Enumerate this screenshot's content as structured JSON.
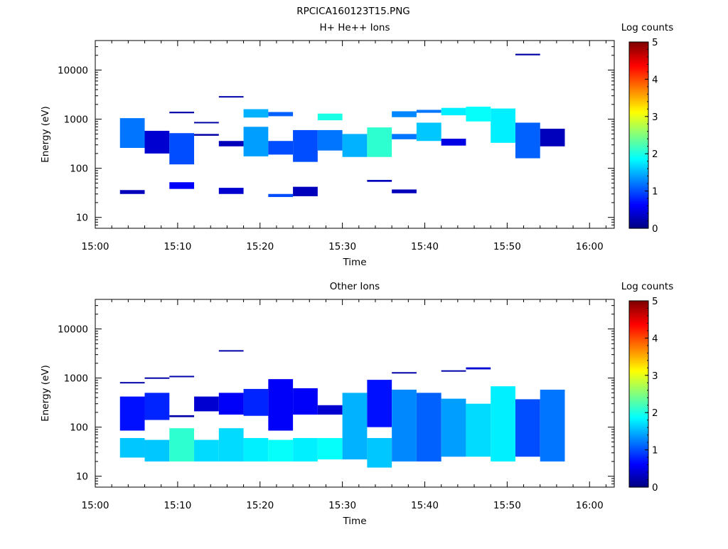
{
  "figure_title": "RPCICA160123T15.PNG",
  "colorbar": {
    "label": "Log counts",
    "ticks": [
      "0",
      "1",
      "2",
      "3",
      "4",
      "5"
    ],
    "colormap": [
      "#00007f",
      "#0000ff",
      "#007fff",
      "#00ffff",
      "#7fff7f",
      "#ffff00",
      "#ff7f00",
      "#ff0000",
      "#7f0000"
    ]
  },
  "chart_data": [
    {
      "type": "heatmap",
      "title": "H+ He++ Ions",
      "xlabel": "Time",
      "ylabel": "Energy (eV)",
      "y_scale": "log",
      "ylim": [
        6,
        40000
      ],
      "xlim": [
        "15:00",
        "16:03"
      ],
      "x_ticks": [
        "15:00",
        "15:10",
        "15:20",
        "15:30",
        "15:40",
        "15:50",
        "16:00"
      ],
      "y_ticks": [
        "10",
        "100",
        "1000",
        "10000"
      ],
      "color_scale": "Log counts",
      "color_range": [
        0,
        5
      ],
      "cells": [
        {
          "t0": "15:03",
          "t1": "15:06",
          "e0": 260,
          "e1": 1050,
          "v": 1.2
        },
        {
          "t0": "15:03",
          "t1": "15:06",
          "e0": 30,
          "e1": 36,
          "v": 0.3
        },
        {
          "t0": "15:06",
          "t1": "15:09",
          "e0": 200,
          "e1": 580,
          "v": 0.4
        },
        {
          "t0": "15:09",
          "t1": "15:12",
          "e0": 120,
          "e1": 520,
          "v": 1.0
        },
        {
          "t0": "15:09",
          "t1": "15:12",
          "e0": 38,
          "e1": 52,
          "v": 0.6
        },
        {
          "t0": "15:09",
          "t1": "15:12",
          "e0": 1320,
          "e1": 1420,
          "v": 0.2
        },
        {
          "t0": "15:12",
          "t1": "15:15",
          "e0": 460,
          "e1": 500,
          "v": 0.2
        },
        {
          "t0": "15:12",
          "t1": "15:15",
          "e0": 840,
          "e1": 880,
          "v": 0.2
        },
        {
          "t0": "15:15",
          "t1": "15:18",
          "e0": 280,
          "e1": 360,
          "v": 0.3
        },
        {
          "t0": "15:15",
          "t1": "15:18",
          "e0": 30,
          "e1": 40,
          "v": 0.4
        },
        {
          "t0": "15:15",
          "t1": "15:18",
          "e0": 2800,
          "e1": 2950,
          "v": 0.2
        },
        {
          "t0": "15:18",
          "t1": "15:21",
          "e0": 175,
          "e1": 700,
          "v": 1.4
        },
        {
          "t0": "15:18",
          "t1": "15:21",
          "e0": 1080,
          "e1": 1600,
          "v": 1.5
        },
        {
          "t0": "15:21",
          "t1": "15:24",
          "e0": 190,
          "e1": 360,
          "v": 1.0
        },
        {
          "t0": "15:21",
          "t1": "15:24",
          "e0": 1150,
          "e1": 1400,
          "v": 1.1
        },
        {
          "t0": "15:21",
          "t1": "15:24",
          "e0": 26,
          "e1": 30,
          "v": 1.0
        },
        {
          "t0": "15:24",
          "t1": "15:27",
          "e0": 135,
          "e1": 600,
          "v": 1.0
        },
        {
          "t0": "15:24",
          "t1": "15:27",
          "e0": 27,
          "e1": 42,
          "v": 0.3
        },
        {
          "t0": "15:27",
          "t1": "15:30",
          "e0": 230,
          "e1": 600,
          "v": 1.2
        },
        {
          "t0": "15:27",
          "t1": "15:30",
          "e0": 950,
          "e1": 1300,
          "v": 2.0
        },
        {
          "t0": "15:30",
          "t1": "15:33",
          "e0": 170,
          "e1": 500,
          "v": 1.5
        },
        {
          "t0": "15:33",
          "t1": "15:36",
          "e0": 170,
          "e1": 680,
          "v": 2.1
        },
        {
          "t0": "15:33",
          "t1": "15:36",
          "e0": 53,
          "e1": 58,
          "v": 0.3
        },
        {
          "t0": "15:36",
          "t1": "15:39",
          "e0": 390,
          "e1": 500,
          "v": 1.2
        },
        {
          "t0": "15:36",
          "t1": "15:39",
          "e0": 1100,
          "e1": 1450,
          "v": 1.3
        },
        {
          "t0": "15:36",
          "t1": "15:39",
          "e0": 31,
          "e1": 37,
          "v": 0.3
        },
        {
          "t0": "15:39",
          "t1": "15:42",
          "e0": 360,
          "e1": 850,
          "v": 1.6
        },
        {
          "t0": "15:39",
          "t1": "15:42",
          "e0": 1350,
          "e1": 1550,
          "v": 1.2
        },
        {
          "t0": "15:42",
          "t1": "15:45",
          "e0": 290,
          "e1": 400,
          "v": 0.5
        },
        {
          "t0": "15:42",
          "t1": "15:45",
          "e0": 1200,
          "e1": 1700,
          "v": 1.8
        },
        {
          "t0": "15:45",
          "t1": "15:48",
          "e0": 900,
          "e1": 1800,
          "v": 1.9
        },
        {
          "t0": "15:48",
          "t1": "15:51",
          "e0": 330,
          "e1": 1650,
          "v": 1.8
        },
        {
          "t0": "15:51",
          "t1": "15:54",
          "e0": 160,
          "e1": 850,
          "v": 1.1
        },
        {
          "t0": "15:51",
          "t1": "15:54",
          "e0": 20000,
          "e1": 21500,
          "v": 0.2
        },
        {
          "t0": "15:54",
          "t1": "15:57",
          "e0": 280,
          "e1": 640,
          "v": 0.3
        }
      ]
    },
    {
      "type": "heatmap",
      "title": "Other Ions",
      "xlabel": "Time",
      "ylabel": "Energy (eV)",
      "y_scale": "log",
      "ylim": [
        6,
        40000
      ],
      "xlim": [
        "15:00",
        "16:03"
      ],
      "x_ticks": [
        "15:00",
        "15:10",
        "15:20",
        "15:30",
        "15:40",
        "15:50",
        "16:00"
      ],
      "y_ticks": [
        "10",
        "100",
        "1000",
        "10000"
      ],
      "color_scale": "Log counts",
      "color_range": [
        0,
        5
      ],
      "cells": [
        {
          "t0": "15:03",
          "t1": "15:06",
          "e0": 85,
          "e1": 420,
          "v": 0.7
        },
        {
          "t0": "15:03",
          "t1": "15:06",
          "e0": 24,
          "e1": 60,
          "v": 1.6
        },
        {
          "t0": "15:03",
          "t1": "15:06",
          "e0": 780,
          "e1": 830,
          "v": 0.2
        },
        {
          "t0": "15:06",
          "t1": "15:09",
          "e0": 140,
          "e1": 500,
          "v": 0.8
        },
        {
          "t0": "15:06",
          "t1": "15:09",
          "e0": 20,
          "e1": 55,
          "v": 1.6
        },
        {
          "t0": "15:06",
          "t1": "15:09",
          "e0": 970,
          "e1": 1030,
          "v": 0.2
        },
        {
          "t0": "15:09",
          "t1": "15:12",
          "e0": 20,
          "e1": 95,
          "v": 2.1
        },
        {
          "t0": "15:09",
          "t1": "15:12",
          "e0": 160,
          "e1": 175,
          "v": 0.2
        },
        {
          "t0": "15:09",
          "t1": "15:12",
          "e0": 1050,
          "e1": 1110,
          "v": 0.2
        },
        {
          "t0": "15:12",
          "t1": "15:15",
          "e0": 20,
          "e1": 55,
          "v": 1.7
        },
        {
          "t0": "15:12",
          "t1": "15:15",
          "e0": 210,
          "e1": 420,
          "v": 0.4
        },
        {
          "t0": "15:15",
          "t1": "15:18",
          "e0": 20,
          "e1": 95,
          "v": 1.7
        },
        {
          "t0": "15:15",
          "t1": "15:18",
          "e0": 180,
          "e1": 500,
          "v": 0.6
        },
        {
          "t0": "15:15",
          "t1": "15:18",
          "e0": 3500,
          "e1": 3700,
          "v": 0.2
        },
        {
          "t0": "15:18",
          "t1": "15:21",
          "e0": 20,
          "e1": 60,
          "v": 1.8
        },
        {
          "t0": "15:18",
          "t1": "15:21",
          "e0": 170,
          "e1": 600,
          "v": 0.8
        },
        {
          "t0": "15:21",
          "t1": "15:24",
          "e0": 20,
          "e1": 55,
          "v": 1.9
        },
        {
          "t0": "15:21",
          "t1": "15:24",
          "e0": 85,
          "e1": 950,
          "v": 0.6
        },
        {
          "t0": "15:24",
          "t1": "15:27",
          "e0": 20,
          "e1": 60,
          "v": 1.8
        },
        {
          "t0": "15:24",
          "t1": "15:27",
          "e0": 180,
          "e1": 620,
          "v": 0.6
        },
        {
          "t0": "15:27",
          "t1": "15:30",
          "e0": 22,
          "e1": 60,
          "v": 1.9
        },
        {
          "t0": "15:27",
          "t1": "15:30",
          "e0": 180,
          "e1": 280,
          "v": 0.4
        },
        {
          "t0": "15:30",
          "t1": "15:33",
          "e0": 22,
          "e1": 500,
          "v": 1.5
        },
        {
          "t0": "15:33",
          "t1": "15:36",
          "e0": 15,
          "e1": 60,
          "v": 1.6
        },
        {
          "t0": "15:33",
          "t1": "15:36",
          "e0": 100,
          "e1": 920,
          "v": 0.7
        },
        {
          "t0": "15:36",
          "t1": "15:39",
          "e0": 20,
          "e1": 580,
          "v": 1.3
        },
        {
          "t0": "15:36",
          "t1": "15:39",
          "e0": 1250,
          "e1": 1320,
          "v": 0.2
        },
        {
          "t0": "15:39",
          "t1": "15:42",
          "e0": 20,
          "e1": 500,
          "v": 1.1
        },
        {
          "t0": "15:42",
          "t1": "15:45",
          "e0": 25,
          "e1": 380,
          "v": 1.4
        },
        {
          "t0": "15:42",
          "t1": "15:45",
          "e0": 1380,
          "e1": 1440,
          "v": 0.2
        },
        {
          "t0": "15:45",
          "t1": "15:48",
          "e0": 25,
          "e1": 300,
          "v": 1.7
        },
        {
          "t0": "15:45",
          "t1": "15:48",
          "e0": 1500,
          "e1": 1650,
          "v": 0.4
        },
        {
          "t0": "15:48",
          "t1": "15:51",
          "e0": 20,
          "e1": 680,
          "v": 1.8
        },
        {
          "t0": "15:51",
          "t1": "15:54",
          "e0": 25,
          "e1": 370,
          "v": 1.0
        },
        {
          "t0": "15:54",
          "t1": "15:57",
          "e0": 20,
          "e1": 580,
          "v": 1.2
        }
      ]
    }
  ]
}
